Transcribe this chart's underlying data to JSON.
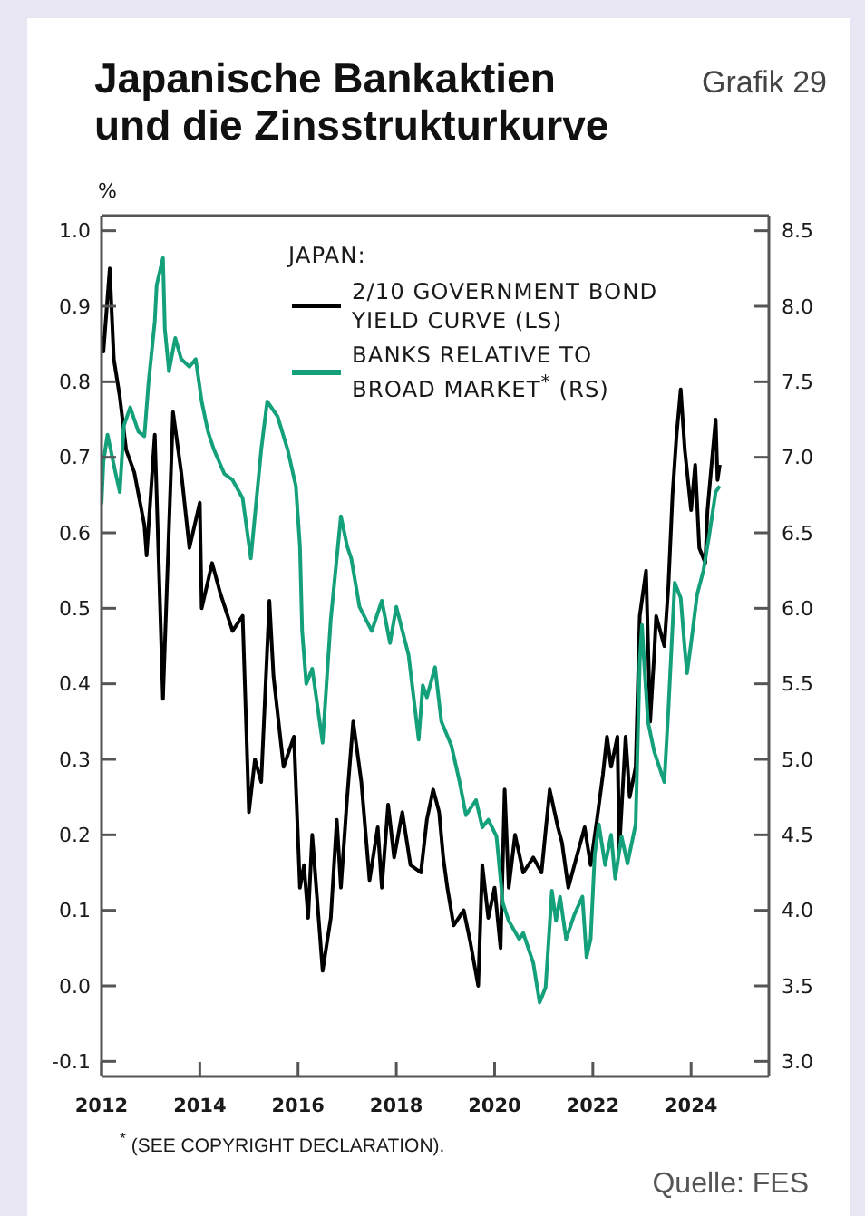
{
  "chart_data": {
    "type": "line",
    "title": "Japanische Bankaktien und die Zinsstrukturkurve",
    "ylabel": "%",
    "legend_title": "JAPAN:",
    "legend": "top right",
    "annotations": [
      "Grafik 29",
      "$^{*}$ (SEE COPYRIGHT DECLARATION).",
      "Quelle: FES"
    ],
    "xlim": [
      "2012-01",
      "2025-08"
    ],
    "xticks": [
      "2012",
      "2014",
      "2016",
      "2018",
      "2020",
      "2022",
      "2024"
    ],
    "ylim": [
      -0.12,
      1.02
    ],
    "yticks": [
      -0.1,
      {
        "value": 0,
        "label": "0.0"
      },
      0.1,
      0.2,
      0.3,
      0.4,
      0.5,
      0.6,
      0.7,
      0.8,
      0.9,
      {
        "value": 1,
        "label": "1.0"
      }
    ],
    "y2lim": [
      2.9,
      8.6
    ],
    "y2ticks": [
      {
        "value": 3,
        "label": "3.0"
      },
      3.5,
      {
        "value": 4,
        "label": "4.0"
      },
      4.5,
      {
        "value": 5,
        "label": "5.0"
      },
      5.5,
      {
        "value": 6,
        "label": "6.0"
      },
      6.5,
      {
        "value": 7,
        "label": "7.0"
      },
      7.5,
      {
        "value": 8,
        "label": "8.0"
      },
      8.5
    ],
    "series": [
      {
        "name": "2/10 GOVERNMENT BOND YIELD CURVE (LS)",
        "color": "#000000",
        "x": [
          "2012-01-01",
          "2012-01-15",
          "2012-03-01",
          "2012-04-01",
          "2012-05-15",
          "2012-07-01",
          "2012-09-01",
          "2012-11-15",
          "2012-12-01",
          "2013-02-01",
          "2013-04-01",
          "2013-06-15",
          "2013-08-15",
          "2013-10-15",
          "2014-01-01",
          "2014-01-15",
          "2014-04-01",
          "2014-06-01",
          "2014-09-01",
          "2014-11-15",
          "2014-12-01",
          "2015-01-01",
          "2015-02-15",
          "2015-04-01",
          "2015-06-01",
          "2015-07-01",
          "2015-09-15",
          "2015-12-01",
          "2016-01-15",
          "2016-02-15",
          "2016-03-15",
          "2016-04-15",
          "2016-07-01",
          "2016-09-01",
          "2016-10-15",
          "2016-11-15",
          "2017-01-01",
          "2017-02-15",
          "2017-04-15",
          "2017-06-15",
          "2017-08-15",
          "2017-09-15",
          "2017-11-01",
          "2017-12-15",
          "2018-02-15",
          "2018-04-15",
          "2018-07-01",
          "2018-08-15",
          "2018-10-01",
          "2018-11-15",
          "2018-12-15",
          "2019-01-15",
          "2019-03-01",
          "2019-05-15",
          "2019-07-01",
          "2019-09-01",
          "2019-10-01",
          "2019-11-15",
          "2020-01-01",
          "2020-02-15",
          "2020-03-15",
          "2020-04-15",
          "2020-06-01",
          "2020-08-01",
          "2020-10-15",
          "2020-12-15",
          "2021-02-15",
          "2021-04-15",
          "2021-05-15",
          "2021-07-01",
          "2021-09-01",
          "2021-11-01",
          "2021-12-15",
          "2022-02-01",
          "2022-03-15",
          "2022-04-15",
          "2022-05-15",
          "2022-07-01",
          "2022-07-15",
          "2022-09-01",
          "2022-10-01",
          "2022-11-15",
          "2022-12-15",
          "2023-02-01",
          "2023-03-01",
          "2023-04-01",
          "2023-04-15",
          "2023-06-15",
          "2023-07-15",
          "2023-08-15",
          "2023-09-15",
          "2023-10-15",
          "2023-11-15",
          "2024-01-01",
          "2024-02-01",
          "2024-03-01",
          "2024-04-15",
          "2024-05-01",
          "2024-06-01",
          "2024-07-01",
          "2024-07-15",
          "2024-08-01"
        ],
        "values": [
          0.86,
          0.84,
          0.95,
          0.83,
          0.78,
          0.71,
          0.68,
          0.61,
          0.57,
          0.73,
          0.38,
          0.76,
          0.68,
          0.58,
          0.64,
          0.5,
          0.56,
          0.52,
          0.47,
          0.49,
          0.4,
          0.23,
          0.3,
          0.27,
          0.51,
          0.41,
          0.29,
          0.33,
          0.13,
          0.16,
          0.09,
          0.2,
          0.02,
          0.09,
          0.22,
          0.13,
          0.25,
          0.35,
          0.27,
          0.14,
          0.21,
          0.13,
          0.24,
          0.17,
          0.23,
          0.16,
          0.15,
          0.22,
          0.26,
          0.23,
          0.17,
          0.13,
          0.08,
          0.1,
          0.06,
          0.0,
          0.16,
          0.09,
          0.13,
          0.05,
          0.26,
          0.13,
          0.2,
          0.15,
          0.17,
          0.15,
          0.26,
          0.21,
          0.19,
          0.13,
          0.17,
          0.21,
          0.16,
          0.22,
          0.28,
          0.33,
          0.29,
          0.33,
          0.18,
          0.33,
          0.25,
          0.29,
          0.49,
          0.55,
          0.35,
          0.44,
          0.49,
          0.45,
          0.53,
          0.65,
          0.73,
          0.79,
          0.71,
          0.63,
          0.69,
          0.58,
          0.56,
          0.63,
          0.69,
          0.75,
          0.67,
          0.69
        ]
      },
      {
        "name": "BANKS RELATIVE TO BROAD MARKET$^{*}$ (RS)",
        "color": "#15a07c",
        "axis": "y2",
        "x": [
          "2012-01-01",
          "2012-01-15",
          "2012-02-15",
          "2012-04-15",
          "2012-05-15",
          "2012-06-15",
          "2012-08-01",
          "2012-10-01",
          "2012-11-15",
          "2012-12-15",
          "2013-02-01",
          "2013-02-15",
          "2013-04-01",
          "2013-04-15",
          "2013-05-15",
          "2013-07-01",
          "2013-08-15",
          "2013-10-15",
          "2013-12-01",
          "2014-01-15",
          "2014-03-01",
          "2014-04-15",
          "2014-07-01",
          "2014-09-01",
          "2014-11-15",
          "2015-01-15",
          "2015-04-01",
          "2015-05-15",
          "2015-08-01",
          "2015-10-15",
          "2015-12-15",
          "2016-01-15",
          "2016-02-01",
          "2016-03-01",
          "2016-04-15",
          "2016-07-01",
          "2016-09-01",
          "2016-11-15",
          "2017-01-01",
          "2017-02-01",
          "2017-04-01",
          "2017-07-01",
          "2017-09-15",
          "2017-11-15",
          "2018-01-01",
          "2018-04-01",
          "2018-06-15",
          "2018-07-15",
          "2018-08-15",
          "2018-10-15",
          "2018-12-01",
          "2019-02-15",
          "2019-04-15",
          "2019-06-01",
          "2019-08-15",
          "2019-10-01",
          "2019-11-15",
          "2020-01-15",
          "2020-03-01",
          "2020-04-15",
          "2020-07-01",
          "2020-08-01",
          "2020-10-15",
          "2020-12-01",
          "2021-01-15",
          "2021-03-01",
          "2021-04-01",
          "2021-05-01",
          "2021-06-15",
          "2021-08-15",
          "2021-10-15",
          "2021-11-15",
          "2021-12-15",
          "2022-01-15",
          "2022-02-15",
          "2022-04-01",
          "2022-05-15",
          "2022-06-15",
          "2022-08-01",
          "2022-09-15",
          "2022-11-15",
          "2022-12-15",
          "2023-01-01",
          "2023-01-15",
          "2023-02-15",
          "2023-04-01",
          "2023-06-15",
          "2023-07-15",
          "2023-09-01",
          "2023-10-15",
          "2023-11-15",
          "2023-12-01",
          "2024-01-01",
          "2024-02-15",
          "2024-04-01",
          "2024-05-15",
          "2024-07-01",
          "2024-08-01"
        ],
        "values": [
          6.69,
          6.97,
          7.15,
          6.89,
          6.77,
          7.21,
          7.33,
          7.17,
          7.14,
          7.49,
          7.9,
          8.14,
          8.32,
          7.85,
          7.57,
          7.79,
          7.65,
          7.6,
          7.65,
          7.37,
          7.17,
          7.05,
          6.89,
          6.85,
          6.73,
          6.33,
          7.05,
          7.37,
          7.27,
          7.05,
          6.81,
          6.41,
          5.85,
          5.5,
          5.6,
          5.11,
          5.93,
          6.61,
          6.41,
          6.33,
          6.01,
          5.85,
          6.05,
          5.77,
          6.01,
          5.69,
          5.13,
          5.49,
          5.41,
          5.61,
          5.25,
          5.09,
          4.85,
          4.63,
          4.73,
          4.55,
          4.6,
          4.49,
          4.05,
          3.93,
          3.81,
          3.85,
          3.65,
          3.39,
          3.49,
          4.13,
          3.93,
          4.09,
          3.81,
          3.97,
          4.09,
          3.69,
          3.81,
          4.37,
          4.57,
          4.3,
          4.5,
          4.21,
          4.49,
          4.31,
          4.57,
          5.65,
          5.89,
          5.67,
          5.25,
          5.05,
          4.85,
          5.33,
          6.17,
          6.07,
          5.73,
          5.57,
          5.77,
          6.09,
          6.25,
          6.49,
          6.77,
          6.81
        ]
      }
    ]
  }
}
